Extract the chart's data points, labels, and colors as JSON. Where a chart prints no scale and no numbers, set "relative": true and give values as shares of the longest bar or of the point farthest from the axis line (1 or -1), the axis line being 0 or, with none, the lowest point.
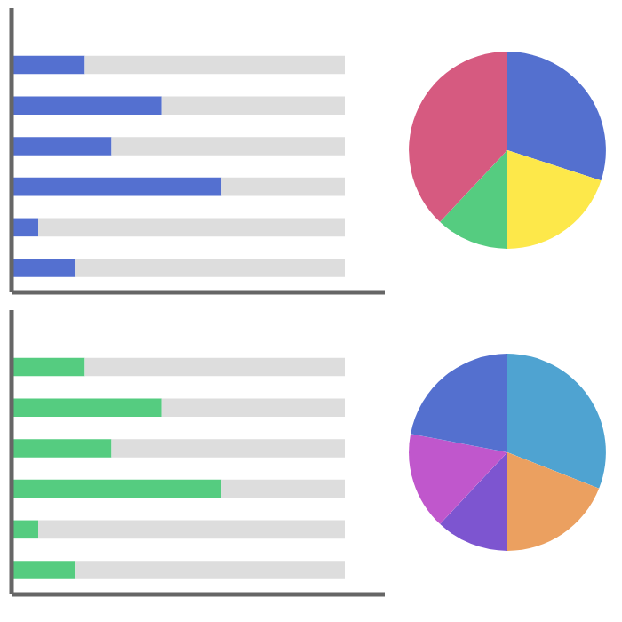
{
  "chart_data": [
    {
      "type": "bar",
      "orientation": "horizontal",
      "stacked": true,
      "relative": true,
      "categories": [
        null,
        null,
        null,
        null,
        null,
        null
      ],
      "series": [
        {
          "color": "#5470d0",
          "values": [
            0.22,
            0.45,
            0.3,
            0.63,
            0.08,
            0.19
          ]
        },
        {
          "color": "#dddddd",
          "values": [
            0.78,
            0.55,
            0.7,
            0.37,
            0.92,
            0.81
          ]
        }
      ]
    },
    {
      "type": "pie",
      "categories": [
        null,
        null,
        null,
        null
      ],
      "values": [
        30,
        20,
        12,
        38
      ],
      "colors": [
        "#5470cf",
        "#fde84a",
        "#55cc80",
        "#d65a80"
      ]
    },
    {
      "type": "bar",
      "orientation": "horizontal",
      "stacked": true,
      "relative": true,
      "categories": [
        null,
        null,
        null,
        null,
        null,
        null
      ],
      "series": [
        {
          "color": "#55cc80",
          "values": [
            0.22,
            0.45,
            0.3,
            0.63,
            0.08,
            0.19
          ]
        },
        {
          "color": "#dddddd",
          "values": [
            0.78,
            0.55,
            0.7,
            0.37,
            0.92,
            0.81
          ]
        }
      ]
    },
    {
      "type": "pie",
      "categories": [
        null,
        null,
        null,
        null,
        null
      ],
      "values": [
        31,
        19,
        12,
        16,
        22
      ],
      "colors": [
        "#4fa3d1",
        "#eba060",
        "#7d55d0",
        "#c057cc",
        "#5470cf"
      ]
    }
  ]
}
